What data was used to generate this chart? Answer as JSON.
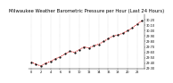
{
  "title": "Milwaukee Weather Barometric Pressure per Hour (Last 24 Hours)",
  "bg_color": "#ffffff",
  "line_color": "#cc0000",
  "marker_color": "#000000",
  "grid_color": "#888888",
  "hours": [
    0,
    1,
    2,
    3,
    4,
    5,
    6,
    7,
    8,
    9,
    10,
    11,
    12,
    13,
    14,
    15,
    16,
    17,
    18,
    19,
    20,
    21,
    22,
    23
  ],
  "pressure": [
    29.42,
    29.38,
    29.35,
    29.4,
    29.43,
    29.48,
    29.52,
    29.57,
    29.62,
    29.6,
    29.65,
    29.7,
    29.68,
    29.72,
    29.75,
    29.8,
    29.85,
    29.9,
    29.92,
    29.95,
    30.0,
    30.05,
    30.12,
    30.18
  ],
  "ylim_min": 29.3,
  "ylim_max": 30.3,
  "title_fontsize": 3.8,
  "tick_fontsize": 2.5,
  "ytick_fontsize": 2.5,
  "right_ticks": [
    29.3,
    29.4,
    29.5,
    29.6,
    29.7,
    29.8,
    29.9,
    30.0,
    30.1,
    30.2
  ],
  "grid_x_positions": [
    0,
    2,
    4,
    6,
    8,
    10,
    12,
    14,
    16,
    18,
    20,
    22
  ]
}
